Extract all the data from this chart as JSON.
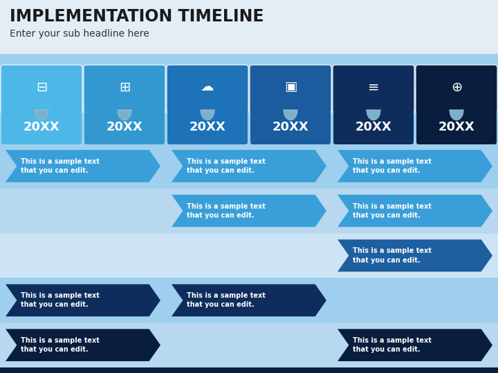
{
  "title": "IMPLEMENTATION TIMELINE",
  "subtitle": "Enter your sub headline here",
  "title_fontsize": 17,
  "subtitle_fontsize": 10,
  "page_bg": "#dce9f5",
  "title_bg": "#e8eef5",
  "card_colors": [
    "#4db8e8",
    "#3498d0",
    "#1e72b8",
    "#1a5c9e",
    "#0f2d5c",
    "#091e3e"
  ],
  "year_label": "20XX",
  "timeline_bg": "#b8d8f0",
  "rows": [
    {
      "bg": "#9ecfee",
      "arrows": [
        {
          "col": 0,
          "color": "#3a9fd8",
          "text": "This is a sample text\nthat you can edit."
        },
        {
          "col": 2,
          "color": "#3a9fd8",
          "text": "This is a sample text\nthat you can edit."
        },
        {
          "col": 4,
          "color": "#3a9fd8",
          "text": "This is a sample text\nthat you can edit."
        }
      ]
    },
    {
      "bg": "#b8d8f0",
      "arrows": [
        {
          "col": 2,
          "color": "#3a9fd8",
          "text": "This is a sample text\nthat you can edit."
        },
        {
          "col": 4,
          "color": "#3a9fd8",
          "text": "This is a sample text\nthat you can edit."
        }
      ]
    },
    {
      "bg": "#cce4f5",
      "arrows": [
        {
          "col": 4,
          "color": "#1e5fa0",
          "text": "This is a sample text\nthat you can edit."
        }
      ]
    },
    {
      "bg": "#9ecfee",
      "arrows": [
        {
          "col": 0,
          "color": "#0f2d5c",
          "text": "This is a sample text\nthat you can edit."
        },
        {
          "col": 2,
          "color": "#0f2d5c",
          "text": "This is a sample text\nthat you can edit."
        }
      ]
    },
    {
      "bg": "#b8d8f0",
      "arrows": [
        {
          "col": 0,
          "color": "#091e3e",
          "text": "This is a sample text\nthat you can edit."
        },
        {
          "col": 4,
          "color": "#091e3e",
          "text": "This is a sample text\nthat you can edit."
        }
      ]
    }
  ]
}
